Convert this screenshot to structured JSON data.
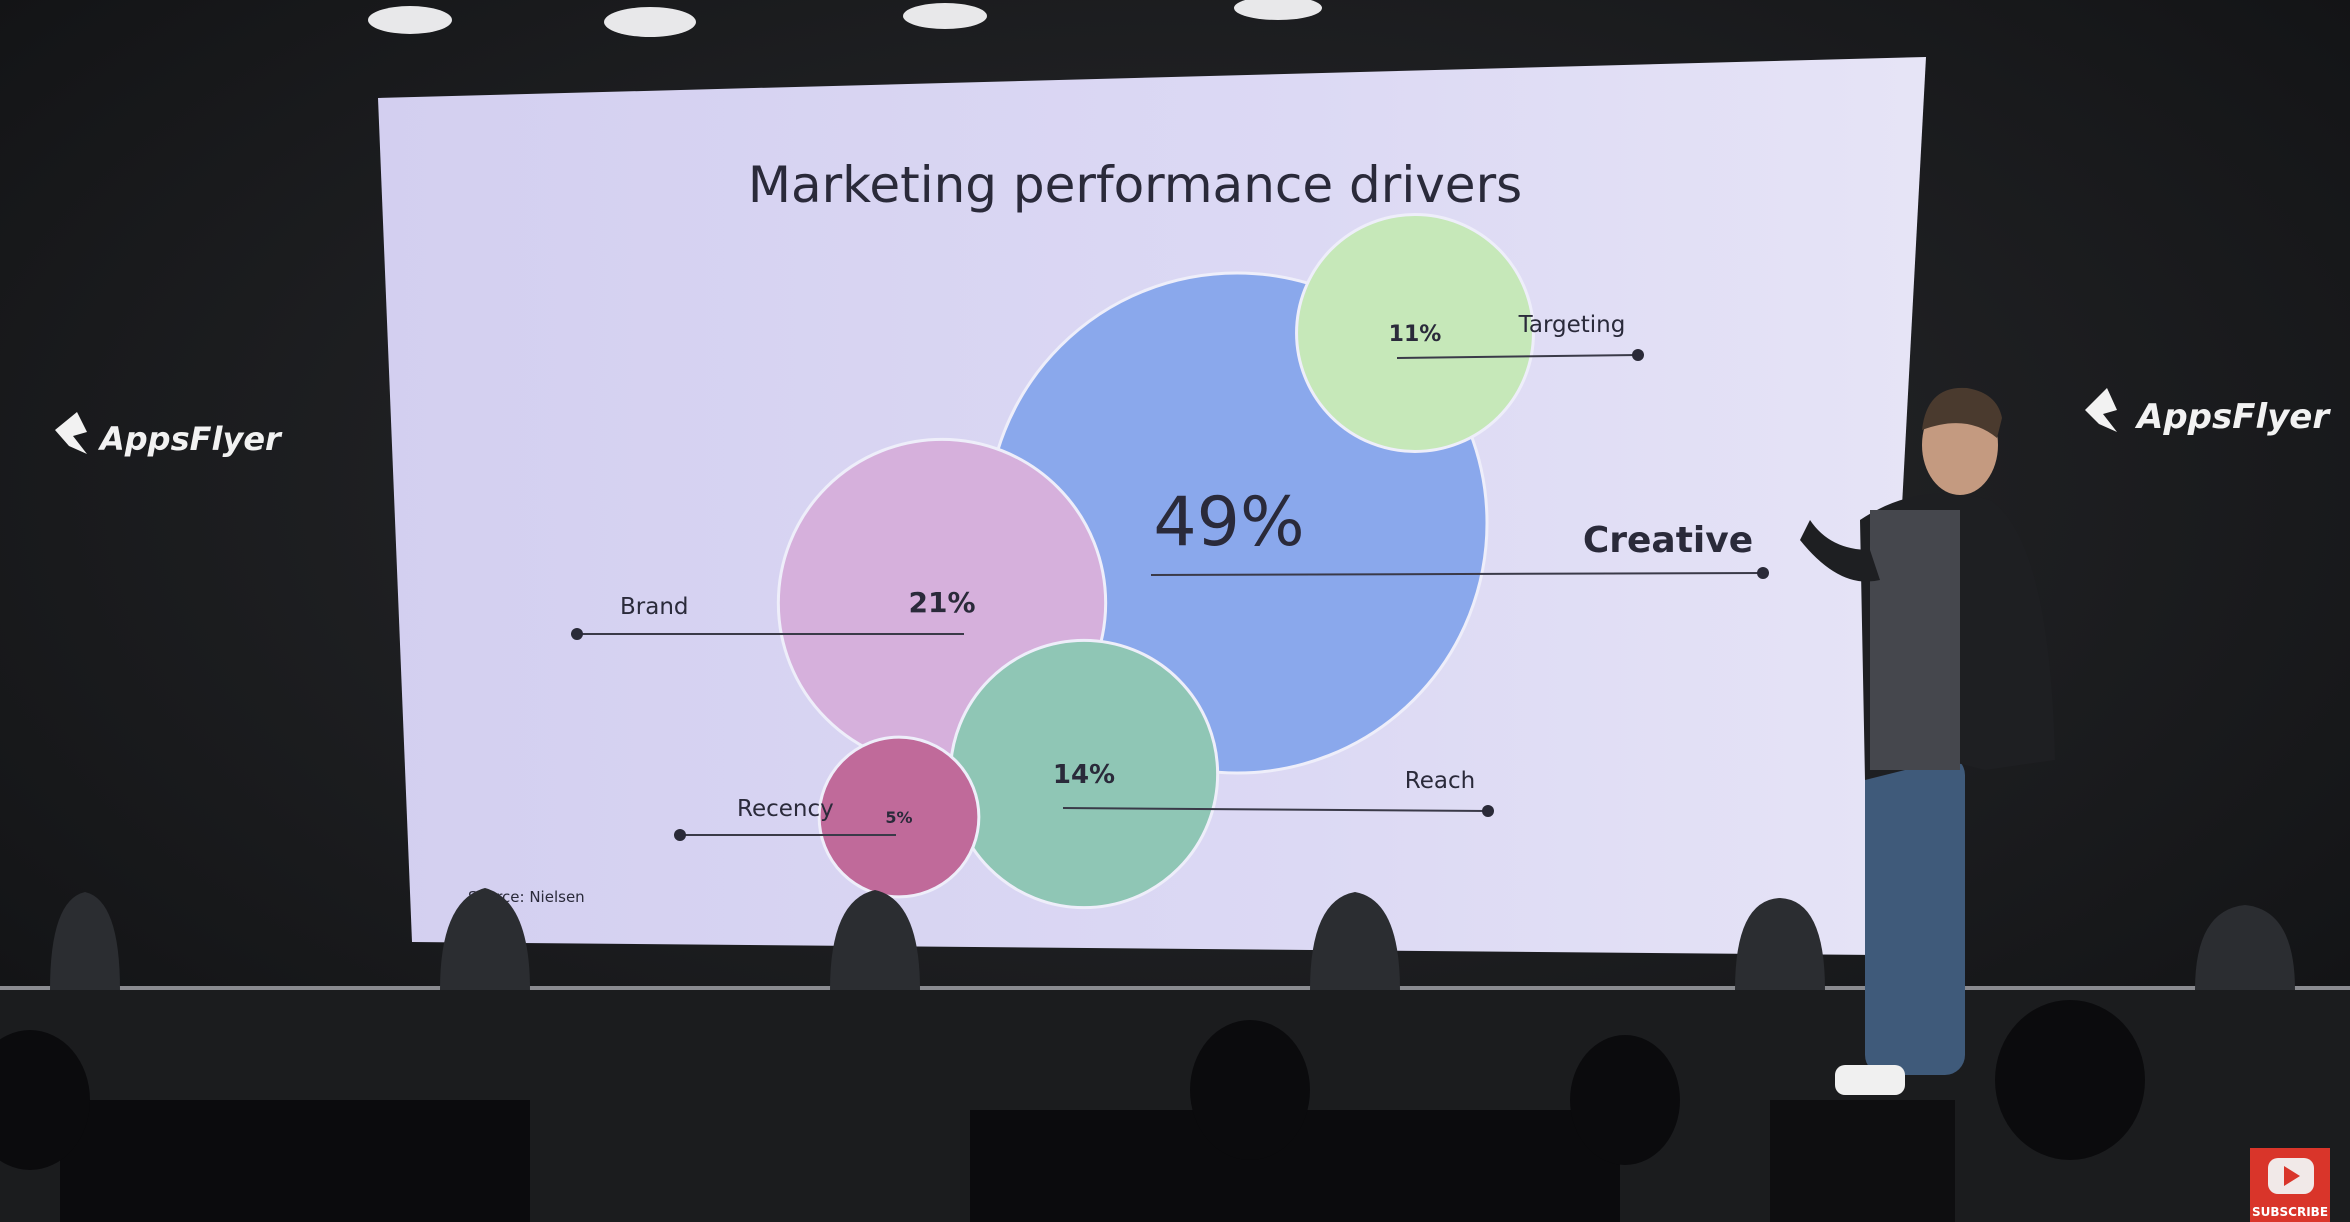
{
  "colors": {
    "slide_background": "#d9d6f2",
    "creative": "#8aa8ec",
    "targeting": "#c6e8b9",
    "brand": "#d6b0dc",
    "reach": "#8fc6b5",
    "recency": "#c06a9a",
    "stage": "#1b1c1e",
    "subscribe": "#d9352a"
  },
  "logos": {
    "left": "AppsFlyer",
    "right": "AppsFlyer"
  },
  "subscribe": {
    "label": "SUBSCRIBE",
    "icon": "youtube-play-icon"
  },
  "chart_data": {
    "type": "bubble",
    "title": "Marketing performance drivers",
    "source": "Source: Nielsen",
    "series": [
      {
        "name": "Creative",
        "value": 49,
        "value_label": "49%",
        "color": "#8aa8ec"
      },
      {
        "name": "Brand",
        "value": 21,
        "value_label": "21%",
        "color": "#d6b0dc"
      },
      {
        "name": "Reach",
        "value": 14,
        "value_label": "14%",
        "color": "#8fc6b5"
      },
      {
        "name": "Targeting",
        "value": 11,
        "value_label": "11%",
        "color": "#c6e8b9"
      },
      {
        "name": "Recency",
        "value": 5,
        "value_label": "5%",
        "color": "#c06a9a"
      }
    ]
  }
}
